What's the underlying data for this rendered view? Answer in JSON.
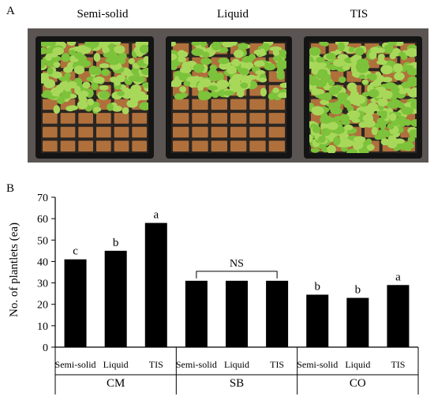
{
  "panel_a": {
    "letter": "A",
    "photos": [
      {
        "label": "Semi-solid",
        "plant_rows": 5
      },
      {
        "label": "Liquid",
        "plant_rows": 4
      },
      {
        "label": "TIS",
        "plant_rows": 8
      }
    ],
    "colors": {
      "leaf": "#7cc23a",
      "leaf_light": "#a8d85a",
      "soil": "#b0703c",
      "tray": "#141414"
    }
  },
  "panel_b": {
    "letter": "B"
  },
  "chart_data": {
    "type": "bar",
    "ylabel": "No. of plantlets (ea)",
    "ylim": [
      0,
      70
    ],
    "yticks": [
      0,
      10,
      20,
      30,
      40,
      50,
      60,
      70
    ],
    "groups": [
      {
        "name": "CM",
        "categories": [
          "Semi-solid",
          "Liquid",
          "TIS"
        ],
        "values": [
          41,
          45,
          58
        ],
        "letters": [
          "c",
          "b",
          "a"
        ]
      },
      {
        "name": "SB",
        "categories": [
          "Semi-solid",
          "Liquid",
          "TIS"
        ],
        "values": [
          31,
          31,
          31
        ],
        "letters": [
          "",
          "",
          ""
        ],
        "bracket": "NS"
      },
      {
        "name": "CO",
        "categories": [
          "Semi-solid",
          "Liquid",
          "TIS"
        ],
        "values": [
          24.5,
          23,
          29
        ],
        "letters": [
          "b",
          "b",
          "a"
        ]
      }
    ],
    "bar_color": "#000000",
    "grid": false,
    "legend": "none"
  }
}
